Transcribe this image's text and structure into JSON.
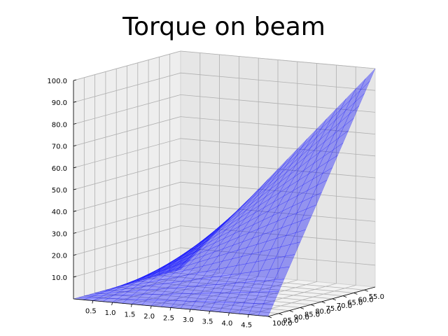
{
  "chart_data": {
    "type": "surface",
    "title": "Torque on beam",
    "xlabel": "",
    "ylabel": "",
    "zlabel": "",
    "xlim": [
      0,
      5
    ],
    "ylim": [
      50,
      100
    ],
    "zlim": [
      0,
      100
    ],
    "x_ticks": [
      "0.5",
      "1.0",
      "1.5",
      "2.0",
      "2.5",
      "3.0",
      "3.5",
      "4.0",
      "4.5"
    ],
    "y_ticks": [
      "100.0",
      "95.0",
      "90.0",
      "85.0",
      "80.0",
      "75.0",
      "70.0",
      "65.0",
      "60.0",
      "55.0"
    ],
    "z_ticks": [
      "10.0",
      "20.0",
      "30.0",
      "40.0",
      "50.0",
      "60.0",
      "70.0",
      "80.0",
      "90.0",
      "100.0"
    ],
    "surface_corners": [
      {
        "x": 0.0,
        "y": 100.0,
        "z": 0.0
      },
      {
        "x": 5.0,
        "y": 100.0,
        "z": 0.0
      },
      {
        "x": 0.0,
        "y": 50.0,
        "z": 0.0
      },
      {
        "x": 5.0,
        "y": 50.0,
        "z": 100.0
      }
    ],
    "surface_color": "#0000ff",
    "grid": true
  }
}
